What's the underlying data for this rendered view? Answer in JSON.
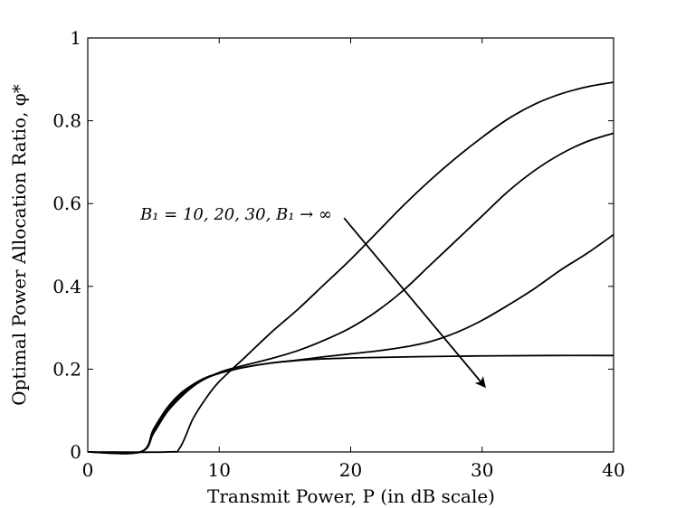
{
  "chart_data": {
    "type": "line",
    "xlabel": "Transmit Power, P (in dB scale)",
    "ylabel": "Optimal Power Allocation Ratio, φ*",
    "xlim": [
      0,
      40
    ],
    "ylim": [
      0,
      1
    ],
    "xticks": [
      0,
      10,
      20,
      30,
      40
    ],
    "xtick_labels": [
      "0",
      "10",
      "20",
      "30",
      "40"
    ],
    "yticks": [
      0,
      0.2,
      0.4,
      0.6,
      0.8,
      1
    ],
    "ytick_labels": [
      "0",
      "0.2",
      "0.4",
      "0.6",
      "0.8",
      "1"
    ],
    "grid": false,
    "annotation": {
      "text": "B₁ = 10, 20, 30, B₁ → ∞",
      "arrow_from": [
        19.5,
        0.565
      ],
      "arrow_to": [
        30.2,
        0.158
      ]
    },
    "series": [
      {
        "x": [
          0,
          6,
          7,
          8,
          9,
          10,
          12,
          14,
          16,
          18,
          20,
          22,
          24,
          26,
          28,
          30,
          32,
          34,
          36,
          38,
          40
        ],
        "y": [
          0,
          0,
          0.01,
          0.08,
          0.13,
          0.17,
          0.23,
          0.29,
          0.345,
          0.405,
          0.465,
          0.53,
          0.595,
          0.655,
          0.71,
          0.76,
          0.805,
          0.84,
          0.865,
          0.882,
          0.893
        ]
      },
      {
        "x": [
          0,
          4,
          5,
          6,
          7,
          8,
          9,
          10,
          11,
          12,
          14,
          16,
          18,
          20,
          22,
          24,
          26,
          28,
          30,
          32,
          34,
          36,
          38,
          40
        ],
        "y": [
          0,
          0,
          0.045,
          0.095,
          0.13,
          0.158,
          0.178,
          0.192,
          0.202,
          0.21,
          0.226,
          0.245,
          0.27,
          0.3,
          0.34,
          0.39,
          0.45,
          0.51,
          0.57,
          0.63,
          0.68,
          0.72,
          0.75,
          0.77
        ]
      },
      {
        "x": [
          0,
          4,
          5,
          6,
          7,
          8,
          9,
          10,
          11,
          12,
          14,
          16,
          18,
          20,
          22,
          24,
          26,
          28,
          30,
          32,
          34,
          36,
          38,
          40
        ],
        "y": [
          0,
          0,
          0.05,
          0.1,
          0.135,
          0.16,
          0.178,
          0.19,
          0.198,
          0.205,
          0.215,
          0.222,
          0.23,
          0.237,
          0.244,
          0.253,
          0.266,
          0.288,
          0.318,
          0.355,
          0.395,
          0.44,
          0.48,
          0.525
        ]
      },
      {
        "x": [
          0,
          4,
          5,
          6,
          7,
          8,
          9,
          10,
          11,
          12,
          14,
          16,
          18,
          20,
          25,
          30,
          35,
          40
        ],
        "y": [
          0,
          0,
          0.055,
          0.105,
          0.14,
          0.163,
          0.18,
          0.19,
          0.198,
          0.205,
          0.215,
          0.221,
          0.225,
          0.227,
          0.23,
          0.232,
          0.233,
          0.233
        ]
      }
    ]
  }
}
